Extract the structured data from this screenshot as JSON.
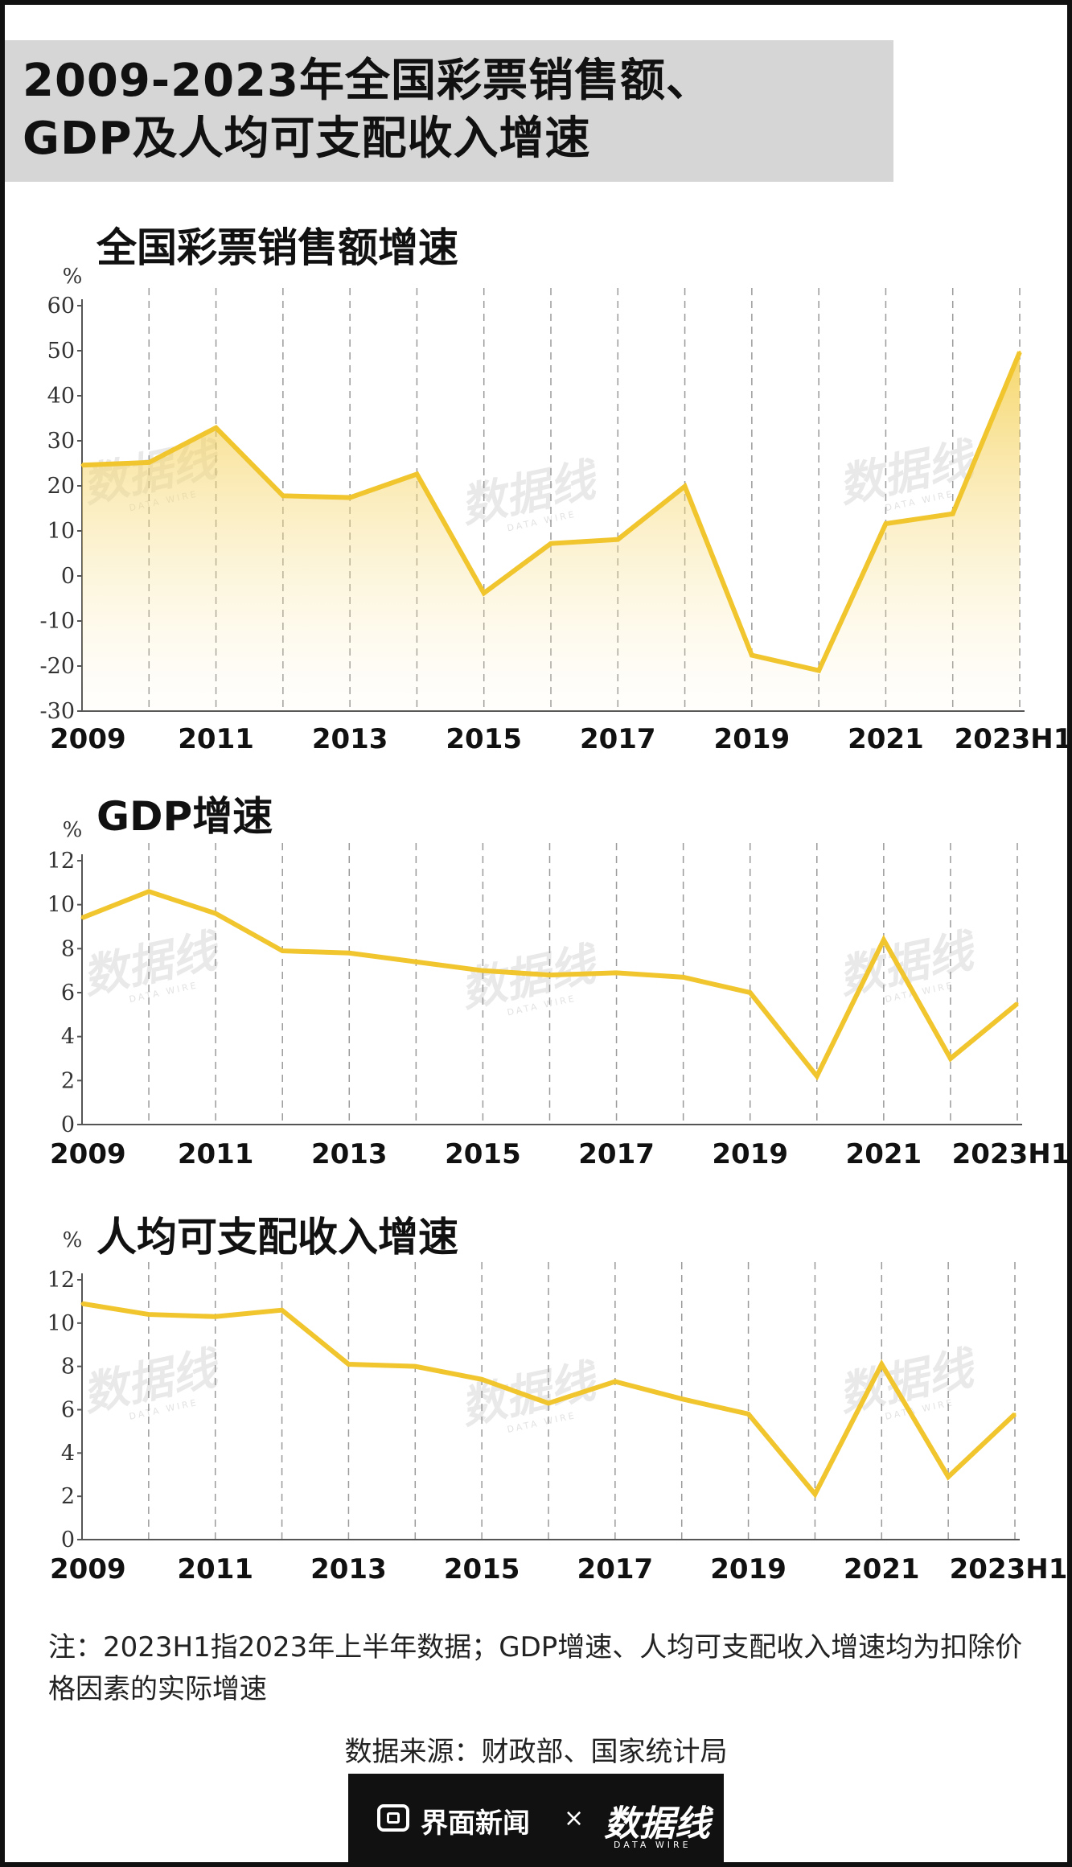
{
  "title": {
    "line1": "2009-2023年全国彩票销售额、",
    "line2": "GDP及人均可支配收入增速"
  },
  "watermark": "数据线",
  "watermark_sub": "DATA WIRE",
  "charts": [
    {
      "title": "全国彩票销售额增速",
      "unit": "%"
    },
    {
      "title": "GDP增速",
      "unit": "%"
    },
    {
      "title": "人均可支配收入增速",
      "unit": "%"
    }
  ],
  "chart_data": [
    {
      "type": "area",
      "title": "全国彩票销售额增速",
      "ylabel": "%",
      "x": [
        "2009",
        "2010",
        "2011",
        "2012",
        "2013",
        "2014",
        "2015",
        "2016",
        "2017",
        "2018",
        "2019",
        "2020",
        "2021",
        "2022",
        "2023H1"
      ],
      "x_tick_labels": [
        "2009",
        "2011",
        "2013",
        "2015",
        "2017",
        "2019",
        "2021",
        "2023H1"
      ],
      "values": [
        24.6,
        25.2,
        32.9,
        17.8,
        17.4,
        22.6,
        -3.8,
        7.2,
        8.1,
        19.9,
        -17.6,
        -21.0,
        11.6,
        13.8,
        49.7
      ],
      "ylim": [
        -30,
        60
      ],
      "yticks": [
        -30,
        -20,
        -10,
        0,
        10,
        20,
        30,
        40,
        50,
        60
      ],
      "grid": "vertical-dashed",
      "color": "#f0c52d"
    },
    {
      "type": "line",
      "title": "GDP增速",
      "ylabel": "%",
      "x": [
        "2009",
        "2010",
        "2011",
        "2012",
        "2013",
        "2014",
        "2015",
        "2016",
        "2017",
        "2018",
        "2019",
        "2020",
        "2021",
        "2022",
        "2023H1"
      ],
      "x_tick_labels": [
        "2009",
        "2011",
        "2013",
        "2015",
        "2017",
        "2019",
        "2021",
        "2023H1"
      ],
      "values": [
        9.4,
        10.6,
        9.6,
        7.9,
        7.8,
        7.4,
        7.0,
        6.8,
        6.9,
        6.7,
        6.0,
        2.2,
        8.4,
        3.0,
        5.5
      ],
      "ylim": [
        0,
        12
      ],
      "yticks": [
        0,
        2,
        4,
        6,
        8,
        10,
        12
      ],
      "grid": "vertical-dashed",
      "color": "#f0c52d"
    },
    {
      "type": "line",
      "title": "人均可支配收入增速",
      "ylabel": "%",
      "x": [
        "2009",
        "2010",
        "2011",
        "2012",
        "2013",
        "2014",
        "2015",
        "2016",
        "2017",
        "2018",
        "2019",
        "2020",
        "2021",
        "2022",
        "2023H1"
      ],
      "x_tick_labels": [
        "2009",
        "2011",
        "2013",
        "2015",
        "2017",
        "2019",
        "2021",
        "2023H1"
      ],
      "values": [
        10.9,
        10.4,
        10.3,
        10.6,
        8.1,
        8.0,
        7.4,
        6.3,
        7.3,
        6.5,
        5.8,
        2.1,
        8.1,
        2.9,
        5.8
      ],
      "ylim": [
        0,
        12
      ],
      "yticks": [
        0,
        2,
        4,
        6,
        8,
        10,
        12
      ],
      "grid": "vertical-dashed",
      "color": "#f0c52d"
    }
  ],
  "note": "注：2023H1指2023年上半年数据；GDP增速、人均可支配收入增速均为扣除价格因素的实际增速",
  "source": "数据来源：财政部、国家统计局",
  "footer": {
    "left_brand": "界面新闻",
    "separator": "×",
    "right_brand": "数据线",
    "right_brand_sub": "DATA WIRE"
  }
}
